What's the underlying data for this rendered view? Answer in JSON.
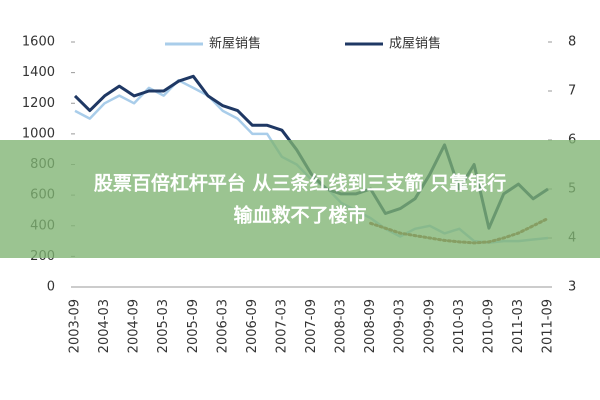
{
  "chart_data": {
    "type": "line",
    "legend": "top",
    "categories": [
      "2003-09",
      null,
      "2004-03",
      null,
      "2004-09",
      null,
      "2005-03",
      null,
      "2005-09",
      null,
      "2006-03",
      null,
      "2006-09",
      null,
      "2007-03",
      null,
      "2007-09",
      null,
      "2008-03",
      null,
      "2008-09",
      null,
      "2009-03",
      null,
      "2009-09",
      null,
      "2010-03",
      null,
      "2010-09",
      null,
      "2011-03",
      null,
      "2011-09"
    ],
    "ylim": [
      0,
      1600
    ],
    "yticks": [
      0,
      200,
      400,
      600,
      800,
      1000,
      1200,
      1400,
      1600
    ],
    "y2lim": [
      3,
      8
    ],
    "y2ticks": [
      3,
      4,
      5,
      6,
      7,
      8
    ],
    "series": [
      {
        "name": "新屋销售",
        "color": "#a9cdea",
        "values": [
          1150,
          1100,
          1200,
          1250,
          1200,
          1300,
          1250,
          1350,
          1300,
          1250,
          1150,
          1100,
          1000,
          1000,
          850,
          800,
          700,
          650,
          550,
          500,
          450,
          380,
          330,
          380,
          400,
          350,
          380,
          300,
          290,
          300,
          300,
          310,
          320
        ]
      },
      {
        "name": "成屋销售",
        "color": "#1f3864",
        "axis": "y2",
        "values": [
          6.9,
          6.6,
          6.9,
          7.1,
          6.9,
          7.0,
          7.0,
          7.2,
          7.3,
          6.9,
          6.7,
          6.6,
          6.3,
          6.3,
          6.2,
          5.8,
          5.3,
          5.0,
          4.9,
          4.9,
          5.0,
          4.5,
          4.6,
          4.8,
          5.3,
          5.9,
          5.0,
          5.5,
          4.2,
          4.9,
          5.1,
          4.8,
          5.0
        ]
      },
      {
        "color": "#a0522d",
        "axis": "y2",
        "dashed": true,
        "values": [
          null,
          null,
          null,
          null,
          null,
          null,
          null,
          null,
          null,
          null,
          null,
          null,
          null,
          null,
          null,
          null,
          null,
          null,
          null,
          null,
          4.3,
          4.2,
          4.1,
          4.05,
          4.0,
          3.95,
          3.92,
          3.9,
          3.92,
          4.0,
          4.1,
          4.25,
          4.4
        ]
      }
    ]
  },
  "banner": {
    "lines": [
      "股票百倍杠杆平台 从三条红线到三支箭 只靠银行",
      "输血救不了楼市"
    ]
  }
}
